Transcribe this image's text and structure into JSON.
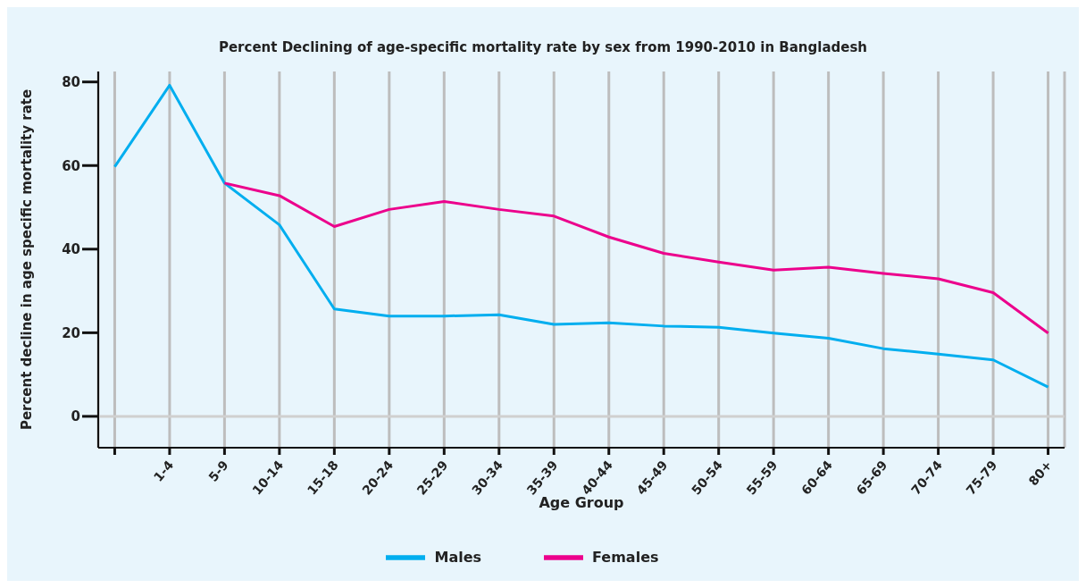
{
  "chart_data": {
    "type": "line",
    "title": "Percent Declining of age-specific mortality rate by sex from 1990-2010 in Bangladesh",
    "xlabel": "Age Group",
    "ylabel": "Percent decline in age specific mortality rate",
    "categories": [
      null,
      "1-4",
      "5-9",
      "10-14",
      "15-18",
      "20-24",
      "25-29",
      "30-34",
      "35-39",
      "40-44",
      "45-49",
      "50-54",
      "55-59",
      "60-64",
      "65-69",
      "70-74",
      "75-79",
      "80+"
    ],
    "series": [
      {
        "name": "Males",
        "color": "#00aeef",
        "values": [
          59.7,
          79.2,
          55.8,
          45.8,
          25.7,
          24,
          24,
          24.3,
          22,
          22.4,
          21.6,
          21.3,
          19.9,
          18.7,
          16.2,
          14.9,
          13.5,
          7
        ]
      },
      {
        "name": "Females",
        "color": "#ec008c",
        "values": [
          null,
          null,
          55.8,
          52.8,
          45.4,
          49.5,
          51.4,
          49.5,
          47.9,
          42.9,
          39,
          36.9,
          35,
          35.7,
          34.2,
          32.9,
          29.6,
          19.9
        ]
      }
    ],
    "ylim": [
      -7.5,
      82.5
    ],
    "yticks": [
      0,
      20,
      40,
      60,
      80
    ],
    "grid": "x",
    "ref_lines": [
      {
        "axis": "y",
        "value": 0,
        "color": "#d0d0d0"
      }
    ],
    "legend": "bottom",
    "marker": "none",
    "line_style": "solid"
  }
}
